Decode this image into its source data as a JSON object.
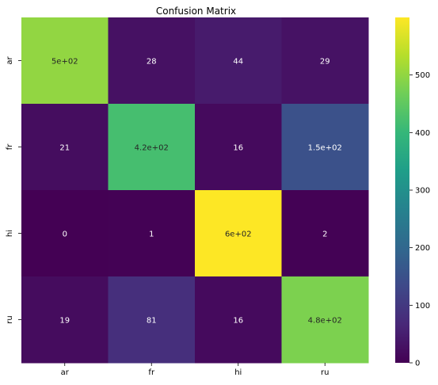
{
  "chart_data": {
    "type": "heatmap",
    "title": "Confusion Matrix",
    "xlabel": "",
    "ylabel": "",
    "x_categories": [
      "ar",
      "fr",
      "hi",
      "ru"
    ],
    "y_categories": [
      "ar",
      "fr",
      "hi",
      "ru"
    ],
    "values": [
      [
        500,
        28,
        44,
        29
      ],
      [
        21,
        420,
        16,
        150
      ],
      [
        0,
        1,
        600,
        2
      ],
      [
        19,
        81,
        16,
        480
      ]
    ],
    "annotations": [
      [
        "5e+02",
        "28",
        "44",
        "29"
      ],
      [
        "21",
        "4.2e+02",
        "16",
        "1.5e+02"
      ],
      [
        "0",
        "1",
        "6e+02",
        "2"
      ],
      [
        "19",
        "81",
        "16",
        "4.8e+02"
      ]
    ],
    "colormap": "viridis",
    "colorbar": {
      "range": [
        0,
        600
      ],
      "ticks": [
        0,
        100,
        200,
        300,
        400,
        500
      ],
      "tick_labels": [
        "0",
        "100",
        "200",
        "300",
        "400",
        "500"
      ]
    },
    "colors": {
      "viridis": [
        "#440154",
        "#482878",
        "#3e4989",
        "#31688e",
        "#26828e",
        "#1f9e89",
        "#35b779",
        "#6ece58",
        "#b5de2b",
        "#fde725"
      ]
    }
  }
}
